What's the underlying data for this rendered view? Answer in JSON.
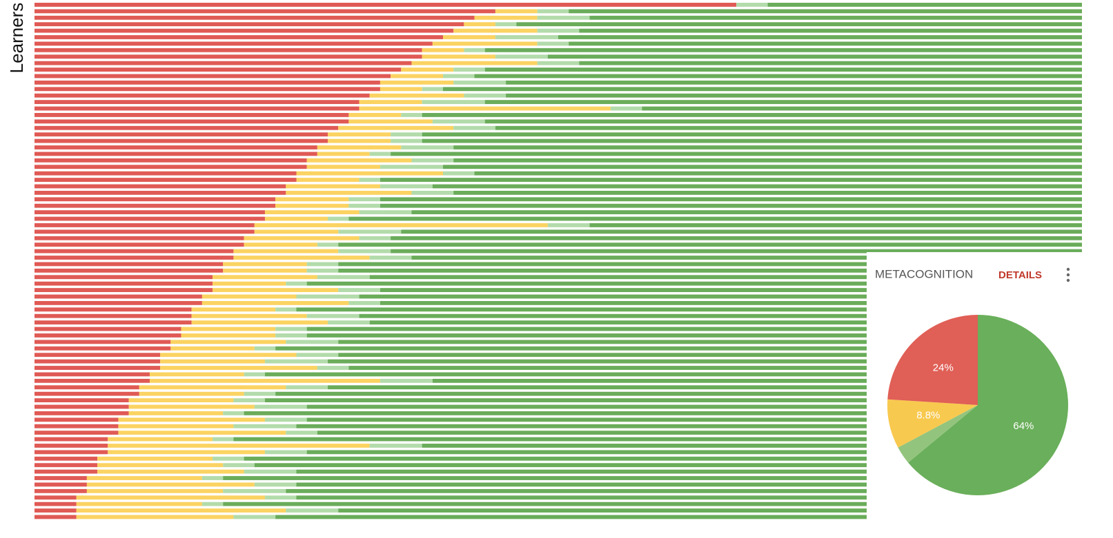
{
  "chart_data": [
    {
      "type": "bar",
      "orientation": "horizontal",
      "stacked": true,
      "ylabel": "Learners",
      "xlim": [
        0,
        100
      ],
      "series": [
        {
          "color": "#e05a55",
          "values": [
            67,
            44,
            42,
            41,
            40,
            39,
            38,
            37,
            37,
            36,
            35,
            34,
            33,
            33,
            32,
            31,
            31,
            30,
            30,
            29,
            28,
            28,
            27,
            27,
            26,
            26,
            25,
            25,
            24,
            24,
            23,
            23,
            22,
            22,
            21,
            21,
            20,
            20,
            19,
            19,
            18,
            18,
            17,
            17,
            17,
            16,
            16,
            15,
            15,
            15,
            14,
            14,
            13,
            13,
            12,
            12,
            12,
            11,
            11,
            10,
            10,
            9,
            9,
            9,
            8,
            8,
            8,
            7,
            7,
            7,
            6,
            6,
            6,
            5,
            5,
            5,
            4,
            4,
            4,
            4
          ]
        },
        {
          "color": "#fbd362",
          "values": [
            0,
            4,
            6,
            3,
            8,
            5,
            10,
            4,
            7,
            12,
            5,
            5,
            7,
            4,
            9,
            6,
            24,
            5,
            8,
            11,
            6,
            6,
            8,
            5,
            10,
            7,
            14,
            6,
            9,
            12,
            7,
            7,
            9,
            6,
            28,
            8,
            11,
            7,
            10,
            13,
            8,
            8,
            10,
            7,
            12,
            9,
            14,
            8,
            11,
            13,
            9,
            9,
            11,
            8,
            13,
            10,
            15,
            9,
            22,
            14,
            10,
            10,
            12,
            9,
            14,
            11,
            16,
            10,
            25,
            15,
            11,
            12,
            14,
            11,
            16,
            13,
            18,
            12,
            20,
            15
          ]
        },
        {
          "color": "#b3dbab",
          "values": [
            3,
            3,
            5,
            2,
            4,
            6,
            3,
            2,
            5,
            4,
            3,
            3,
            5,
            2,
            4,
            6,
            3,
            2,
            5,
            4,
            3,
            3,
            5,
            2,
            4,
            6,
            3,
            2,
            5,
            4,
            3,
            3,
            5,
            2,
            4,
            6,
            3,
            2,
            5,
            4,
            3,
            3,
            5,
            2,
            4,
            6,
            3,
            2,
            5,
            4,
            3,
            3,
            5,
            2,
            4,
            6,
            3,
            2,
            5,
            4,
            3,
            3,
            5,
            2,
            4,
            6,
            3,
            2,
            5,
            4,
            3,
            3,
            5,
            2,
            4,
            6,
            3,
            2,
            5,
            4
          ]
        },
        {
          "color": "#6aac5a",
          "values": [
            30,
            49,
            47,
            54,
            48,
            50,
            49,
            57,
            51,
            48,
            57,
            58,
            55,
            61,
            55,
            57,
            42,
            63,
            57,
            56,
            63,
            63,
            60,
            66,
            60,
            61,
            58,
            67,
            62,
            60,
            67,
            67,
            64,
            70,
            47,
            65,
            66,
            71,
            66,
            64,
            71,
            71,
            68,
            74,
            67,
            69,
            67,
            75,
            69,
            68,
            74,
            74,
            71,
            77,
            71,
            72,
            70,
            78,
            62,
            72,
            77,
            78,
            74,
            80,
            74,
            75,
            73,
            81,
            63,
            74,
            80,
            79,
            75,
            82,
            75,
            76,
            75,
            82,
            71,
            77
          ]
        }
      ]
    },
    {
      "type": "pie",
      "title": "METACOGNITION",
      "action": "DETAILS",
      "values": [
        64,
        3.2,
        8.8,
        24
      ],
      "value_labels": [
        "64%",
        null,
        "8.8%",
        "24%"
      ],
      "colors": [
        "#6aaf5b",
        "#93c47d",
        "#f8c94f",
        "#e05f56"
      ]
    }
  ]
}
